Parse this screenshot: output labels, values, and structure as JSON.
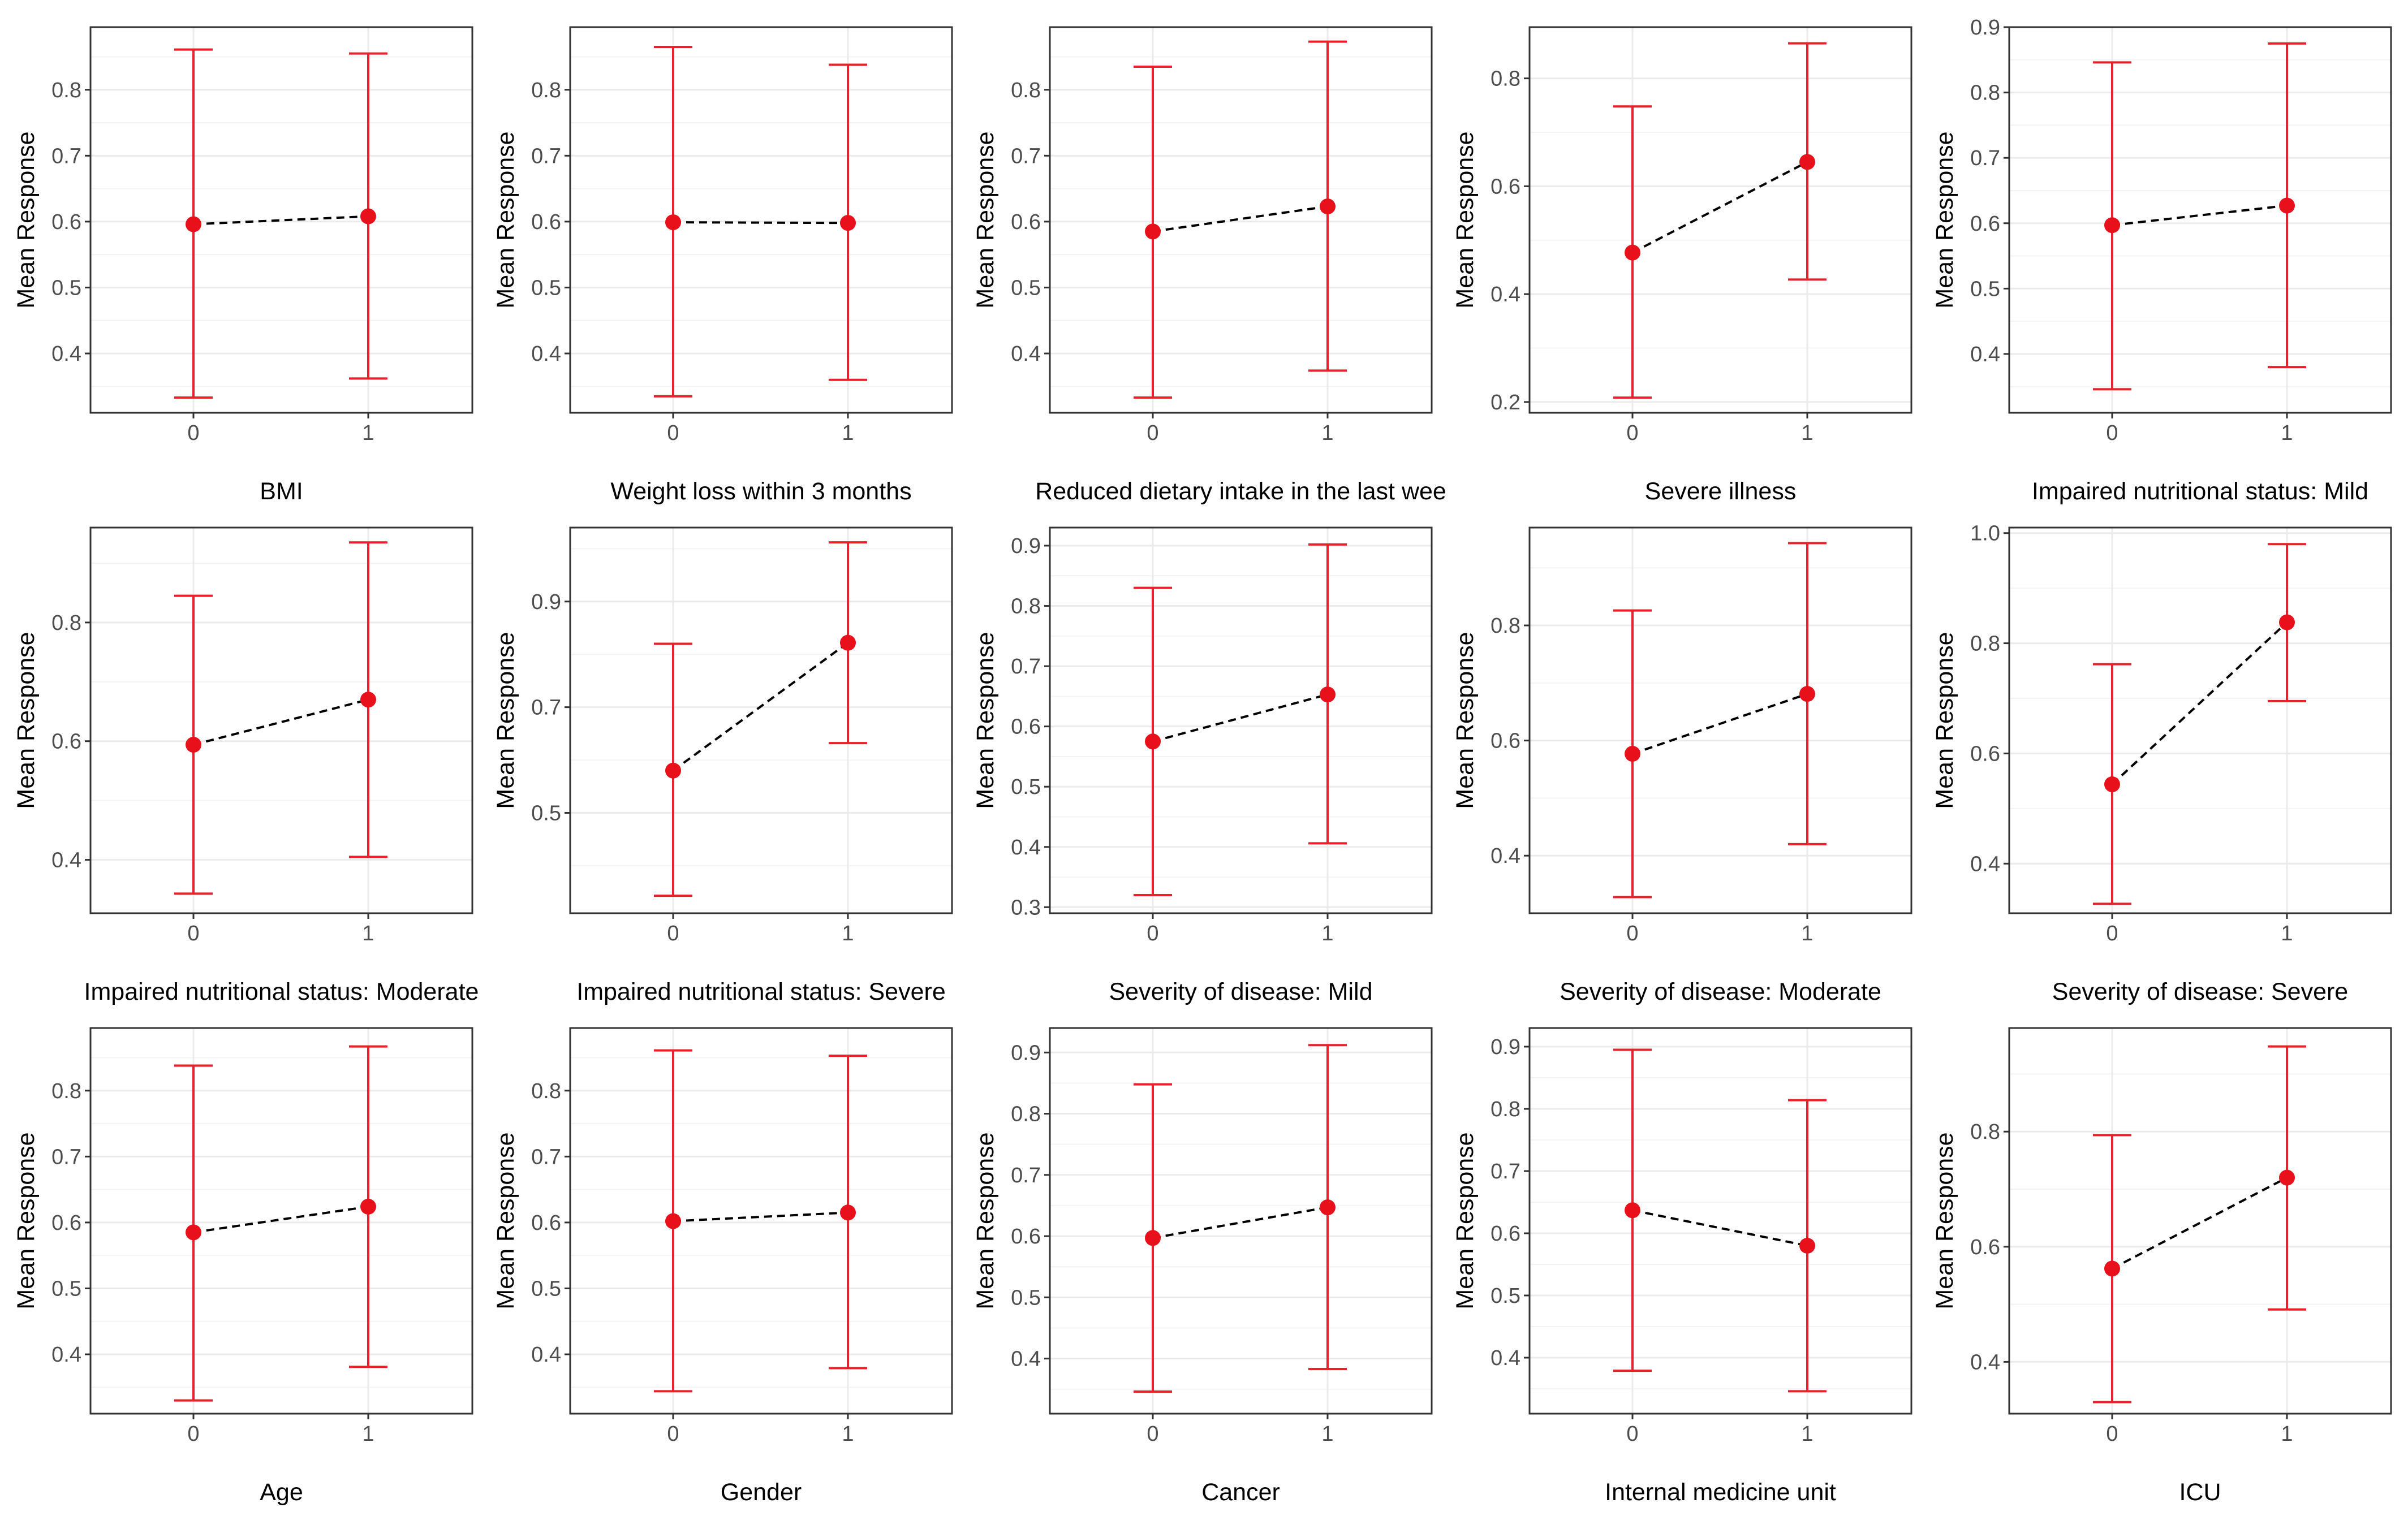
{
  "figure": {
    "ylabel": "Mean Response",
    "colors": {
      "error_bar": "#e8222a",
      "point": "#e8101a",
      "trend_line": "#000000",
      "panel_border": "#333333",
      "grid_major": "#ebebeb",
      "grid_minor": "#f4f4f4",
      "tick_text": "#4d4d4d"
    }
  },
  "chart_data": [
    {
      "type": "scatter",
      "title": "BMI",
      "xlabel": "BMI",
      "ylabel": "Mean Response",
      "categories": [
        "0",
        "1"
      ],
      "values": [
        0.596,
        0.608
      ],
      "lower": [
        0.333,
        0.362
      ],
      "upper": [
        0.861,
        0.855
      ],
      "ylim": [
        0.31,
        0.895
      ],
      "yticks": [
        0.4,
        0.5,
        0.6,
        0.7,
        0.8
      ],
      "ytick_labels": [
        "0.4",
        "0.5",
        "0.6",
        "0.7",
        "0.8"
      ]
    },
    {
      "type": "scatter",
      "title": "Weight loss within 3 months",
      "xlabel": "Weight loss within 3 months",
      "ylabel": "Mean Response",
      "categories": [
        "0",
        "1"
      ],
      "values": [
        0.599,
        0.598
      ],
      "lower": [
        0.335,
        0.36
      ],
      "upper": [
        0.865,
        0.838
      ],
      "ylim": [
        0.31,
        0.895
      ],
      "yticks": [
        0.4,
        0.5,
        0.6,
        0.7,
        0.8
      ],
      "ytick_labels": [
        "0.4",
        "0.5",
        "0.6",
        "0.7",
        "0.8"
      ]
    },
    {
      "type": "scatter",
      "title": "Reduced dietary intake in the last week",
      "xlabel": "Reduced dietary intake in the last wee",
      "ylabel": "Mean Response",
      "categories": [
        "0",
        "1"
      ],
      "values": [
        0.585,
        0.623
      ],
      "lower": [
        0.333,
        0.374
      ],
      "upper": [
        0.835,
        0.873
      ],
      "ylim": [
        0.31,
        0.895
      ],
      "yticks": [
        0.4,
        0.5,
        0.6,
        0.7,
        0.8
      ],
      "ytick_labels": [
        "0.4",
        "0.5",
        "0.6",
        "0.7",
        "0.8"
      ]
    },
    {
      "type": "scatter",
      "title": "Severe illness",
      "xlabel": "Severe illness",
      "ylabel": "Mean Response",
      "categories": [
        "0",
        "1"
      ],
      "values": [
        0.477,
        0.645
      ],
      "lower": [
        0.208,
        0.427
      ],
      "upper": [
        0.748,
        0.865
      ],
      "ylim": [
        0.18,
        0.895
      ],
      "yticks": [
        0.2,
        0.4,
        0.6,
        0.8
      ],
      "ytick_labels": [
        "0.2",
        "0.4",
        "0.6",
        "0.8"
      ]
    },
    {
      "type": "scatter",
      "title": "Impaired nutritional status: Mild",
      "xlabel": "Impaired nutritional status: Mild",
      "ylabel": "Mean Response",
      "categories": [
        "0",
        "1"
      ],
      "values": [
        0.597,
        0.627
      ],
      "lower": [
        0.346,
        0.38
      ],
      "upper": [
        0.846,
        0.875
      ],
      "ylim": [
        0.31,
        0.9
      ],
      "yticks": [
        0.4,
        0.5,
        0.6,
        0.7,
        0.8,
        0.9
      ],
      "ytick_labels": [
        "0.4",
        "0.5",
        "0.6",
        "0.7",
        "0.8",
        "0.9"
      ]
    },
    {
      "type": "scatter",
      "title": "Impaired nutritional status: Moderate",
      "xlabel": "Impaired nutritional status: Moderate",
      "ylabel": "Mean Response",
      "categories": [
        "0",
        "1"
      ],
      "values": [
        0.594,
        0.67
      ],
      "lower": [
        0.343,
        0.405
      ],
      "upper": [
        0.845,
        0.935
      ],
      "ylim": [
        0.31,
        0.96
      ],
      "yticks": [
        0.4,
        0.6,
        0.8
      ],
      "ytick_labels": [
        "0.4",
        "0.6",
        "0.8"
      ]
    },
    {
      "type": "scatter",
      "title": "Impaired nutritional status: Severe",
      "xlabel": "Impaired nutritional status: Severe",
      "ylabel": "Mean Response",
      "categories": [
        "0",
        "1"
      ],
      "values": [
        0.58,
        0.822
      ],
      "lower": [
        0.343,
        0.632
      ],
      "upper": [
        0.82,
        1.012
      ],
      "ylim": [
        0.31,
        1.04
      ],
      "yticks": [
        0.5,
        0.7,
        0.9
      ],
      "ytick_labels": [
        "0.5",
        "0.7",
        "0.9"
      ]
    },
    {
      "type": "scatter",
      "title": "Severity of disease: Mild",
      "xlabel": "Severity of disease: Mild",
      "ylabel": "Mean Response",
      "categories": [
        "0",
        "1"
      ],
      "values": [
        0.575,
        0.653
      ],
      "lower": [
        0.32,
        0.406
      ],
      "upper": [
        0.83,
        0.902
      ],
      "ylim": [
        0.29,
        0.93
      ],
      "yticks": [
        0.3,
        0.4,
        0.5,
        0.6,
        0.7,
        0.8,
        0.9
      ],
      "ytick_labels": [
        "0.3",
        "0.4",
        "0.5",
        "0.6",
        "0.7",
        "0.8",
        "0.9"
      ]
    },
    {
      "type": "scatter",
      "title": "Severity of disease: Moderate",
      "xlabel": "Severity of disease: Moderate",
      "ylabel": "Mean Response",
      "categories": [
        "0",
        "1"
      ],
      "values": [
        0.577,
        0.681
      ],
      "lower": [
        0.328,
        0.42
      ],
      "upper": [
        0.826,
        0.943
      ],
      "ylim": [
        0.3,
        0.97
      ],
      "yticks": [
        0.4,
        0.6,
        0.8
      ],
      "ytick_labels": [
        "0.4",
        "0.6",
        "0.8"
      ]
    },
    {
      "type": "scatter",
      "title": "Severity of disease: Severe",
      "xlabel": "Severity of disease: Severe",
      "ylabel": "Mean Response",
      "categories": [
        "0",
        "1"
      ],
      "values": [
        0.544,
        0.838
      ],
      "lower": [
        0.327,
        0.695
      ],
      "upper": [
        0.762,
        0.98
      ],
      "ylim": [
        0.31,
        1.01
      ],
      "yticks": [
        0.4,
        0.6,
        0.8,
        1.0
      ],
      "ytick_labels": [
        "0.4",
        "0.6",
        "0.8",
        "1.0"
      ]
    },
    {
      "type": "scatter",
      "title": "Age",
      "xlabel": "Age",
      "ylabel": "Mean Response",
      "categories": [
        "0",
        "1"
      ],
      "values": [
        0.585,
        0.624
      ],
      "lower": [
        0.33,
        0.381
      ],
      "upper": [
        0.838,
        0.867
      ],
      "ylim": [
        0.31,
        0.895
      ],
      "yticks": [
        0.4,
        0.5,
        0.6,
        0.7,
        0.8
      ],
      "ytick_labels": [
        "0.4",
        "0.5",
        "0.6",
        "0.7",
        "0.8"
      ]
    },
    {
      "type": "scatter",
      "title": "Gender",
      "xlabel": "Gender",
      "ylabel": "Mean Response",
      "categories": [
        "0",
        "1"
      ],
      "values": [
        0.602,
        0.615
      ],
      "lower": [
        0.344,
        0.379
      ],
      "upper": [
        0.861,
        0.853
      ],
      "ylim": [
        0.31,
        0.895
      ],
      "yticks": [
        0.4,
        0.5,
        0.6,
        0.7,
        0.8
      ],
      "ytick_labels": [
        "0.4",
        "0.5",
        "0.6",
        "0.7",
        "0.8"
      ]
    },
    {
      "type": "scatter",
      "title": "Cancer",
      "xlabel": "Cancer",
      "ylabel": "Mean Response",
      "categories": [
        "0",
        "1"
      ],
      "values": [
        0.597,
        0.647
      ],
      "lower": [
        0.346,
        0.383
      ],
      "upper": [
        0.848,
        0.912
      ],
      "ylim": [
        0.31,
        0.94
      ],
      "yticks": [
        0.4,
        0.5,
        0.6,
        0.7,
        0.8,
        0.9
      ],
      "ytick_labels": [
        "0.4",
        "0.5",
        "0.6",
        "0.7",
        "0.8",
        "0.9"
      ]
    },
    {
      "type": "scatter",
      "title": "Internal medicine unit",
      "xlabel": "Internal medicine unit",
      "ylabel": "Mean Response",
      "categories": [
        "0",
        "1"
      ],
      "values": [
        0.637,
        0.58
      ],
      "lower": [
        0.379,
        0.346
      ],
      "upper": [
        0.895,
        0.814
      ],
      "ylim": [
        0.31,
        0.93
      ],
      "yticks": [
        0.4,
        0.5,
        0.6,
        0.7,
        0.8,
        0.9
      ],
      "ytick_labels": [
        "0.4",
        "0.5",
        "0.6",
        "0.7",
        "0.8",
        "0.9"
      ]
    },
    {
      "type": "scatter",
      "title": "ICU",
      "xlabel": "ICU",
      "ylabel": "Mean Response",
      "categories": [
        "0",
        "1"
      ],
      "values": [
        0.562,
        0.72
      ],
      "lower": [
        0.33,
        0.491
      ],
      "upper": [
        0.794,
        0.948
      ],
      "ylim": [
        0.31,
        0.98
      ],
      "yticks": [
        0.4,
        0.6,
        0.8
      ],
      "ytick_labels": [
        "0.4",
        "0.6",
        "0.8"
      ]
    }
  ]
}
